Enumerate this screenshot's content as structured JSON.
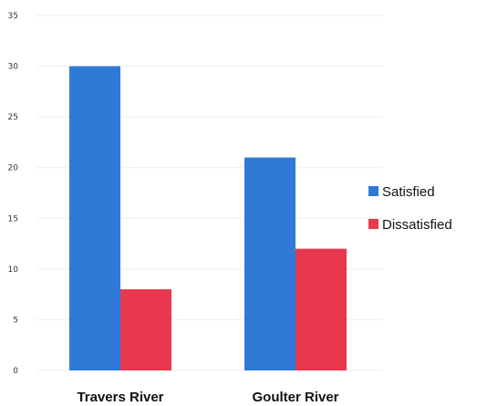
{
  "chart_data": {
    "type": "bar",
    "categories": [
      "Travers River",
      "Goulter River"
    ],
    "series": [
      {
        "name": "Satisfied",
        "values": [
          30,
          21
        ],
        "color": "#2f7ad6"
      },
      {
        "name": "Dissatisfied",
        "values": [
          8,
          12
        ],
        "color": "#e8384f"
      }
    ],
    "ylim": [
      0,
      35
    ],
    "yticks": [
      0,
      5,
      10,
      15,
      20,
      25,
      30,
      35
    ],
    "grid": true,
    "legend_position": "right"
  }
}
